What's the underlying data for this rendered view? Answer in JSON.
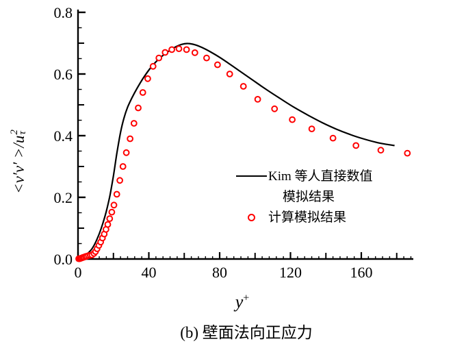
{
  "figure": {
    "caption": "(b) 壁面法向正应力",
    "x_axis": {
      "label_base": "y",
      "label_sup": "+",
      "tick_labels": [
        "0",
        "40",
        "80",
        "120",
        "160"
      ]
    },
    "y_axis": {
      "label_main": "<v′v′ >/u",
      "label_sup": "2",
      "label_sub": "τ",
      "tick_labels": [
        "0.0",
        "0.2",
        "0.4",
        "0.6",
        "0.8"
      ]
    },
    "legend": {
      "line_label_line1": "Kim 等人直接数值",
      "line_label_line2": "模拟结果",
      "scatter_label": "计算模拟结果"
    },
    "colors": {
      "line": "#000000",
      "scatter": "#ff0000",
      "axis": "#000000",
      "text": "#000000",
      "background": "#ffffff"
    }
  },
  "chart_data": {
    "type": "line+scatter",
    "title": "",
    "xlabel": "y+",
    "ylabel": "<v'v'>/u_tau^2",
    "xlim": [
      0,
      190
    ],
    "ylim": [
      0,
      0.8
    ],
    "x_major_ticks": [
      0,
      40,
      80,
      120,
      160
    ],
    "x_medium_tick_step": 20,
    "x_minor_tick_step": 4,
    "y_major_ticks": [
      0.0,
      0.2,
      0.4,
      0.6,
      0.8
    ],
    "y_medium_tick_step": 0.1,
    "y_minor_tick_step": 0.05,
    "grid": false,
    "legend_position": "center-right",
    "series": [
      {
        "name": "Kim 等人直接数值模拟结果",
        "type": "line",
        "color": "#000000",
        "points": [
          [
            0,
            0.0
          ],
          [
            2,
            0.003
          ],
          [
            4,
            0.01
          ],
          [
            6,
            0.021
          ],
          [
            8,
            0.034
          ],
          [
            10,
            0.055
          ],
          [
            12,
            0.082
          ],
          [
            14,
            0.115
          ],
          [
            16,
            0.155
          ],
          [
            18,
            0.205
          ],
          [
            20,
            0.27
          ],
          [
            22,
            0.345
          ],
          [
            24,
            0.41
          ],
          [
            26,
            0.458
          ],
          [
            28,
            0.492
          ],
          [
            30.5,
            0.523
          ],
          [
            33.5,
            0.555
          ],
          [
            37,
            0.588
          ],
          [
            41,
            0.62
          ],
          [
            45.5,
            0.648
          ],
          [
            50,
            0.669
          ],
          [
            54.5,
            0.686
          ],
          [
            58.5,
            0.696
          ],
          [
            62,
            0.699
          ],
          [
            66,
            0.695
          ],
          [
            70,
            0.686
          ],
          [
            75,
            0.671
          ],
          [
            80,
            0.654
          ],
          [
            86,
            0.631
          ],
          [
            92,
            0.607
          ],
          [
            99,
            0.579
          ],
          [
            106,
            0.551
          ],
          [
            114,
            0.521
          ],
          [
            122,
            0.492
          ],
          [
            130,
            0.466
          ],
          [
            138,
            0.442
          ],
          [
            146,
            0.421
          ],
          [
            154,
            0.403
          ],
          [
            161,
            0.39
          ],
          [
            168,
            0.379
          ],
          [
            174,
            0.372
          ],
          [
            178.8,
            0.368
          ]
        ]
      },
      {
        "name": "计算模拟结果",
        "type": "scatter",
        "color": "#ff0000",
        "points": [
          [
            0.4,
            0.001
          ],
          [
            0.9,
            0.001
          ],
          [
            1.4,
            0.002
          ],
          [
            2.0,
            0.003
          ],
          [
            2.7,
            0.005
          ],
          [
            3.4,
            0.006
          ],
          [
            4.2,
            0.008
          ],
          [
            5.0,
            0.009
          ],
          [
            5.9,
            0.011
          ],
          [
            6.9,
            0.012
          ],
          [
            7.9,
            0.013
          ],
          [
            9.0,
            0.018
          ],
          [
            9.9,
            0.024
          ],
          [
            10.8,
            0.033
          ],
          [
            11.8,
            0.044
          ],
          [
            12.8,
            0.055
          ],
          [
            13.8,
            0.068
          ],
          [
            14.8,
            0.081
          ],
          [
            15.8,
            0.096
          ],
          [
            16.8,
            0.112
          ],
          [
            17.9,
            0.131
          ],
          [
            19.1,
            0.152
          ],
          [
            20.3,
            0.175
          ],
          [
            21.9,
            0.21
          ],
          [
            23.6,
            0.255
          ],
          [
            25.4,
            0.3
          ],
          [
            27.3,
            0.345
          ],
          [
            29.4,
            0.39
          ],
          [
            31.6,
            0.44
          ],
          [
            34.0,
            0.49
          ],
          [
            36.6,
            0.54
          ],
          [
            39.4,
            0.585
          ],
          [
            42.4,
            0.625
          ],
          [
            45.7,
            0.652
          ],
          [
            49.2,
            0.67
          ],
          [
            53.0,
            0.679
          ],
          [
            57.0,
            0.682
          ],
          [
            61.3,
            0.679
          ],
          [
            66.0,
            0.669
          ],
          [
            72.6,
            0.652
          ],
          [
            78.8,
            0.63
          ],
          [
            85.7,
            0.6
          ],
          [
            93.4,
            0.56
          ],
          [
            101.5,
            0.518
          ],
          [
            111.0,
            0.487
          ],
          [
            121.0,
            0.452
          ],
          [
            132.0,
            0.422
          ],
          [
            144.0,
            0.392
          ],
          [
            157.0,
            0.368
          ],
          [
            171.0,
            0.353
          ],
          [
            186.0,
            0.343
          ]
        ]
      }
    ]
  }
}
